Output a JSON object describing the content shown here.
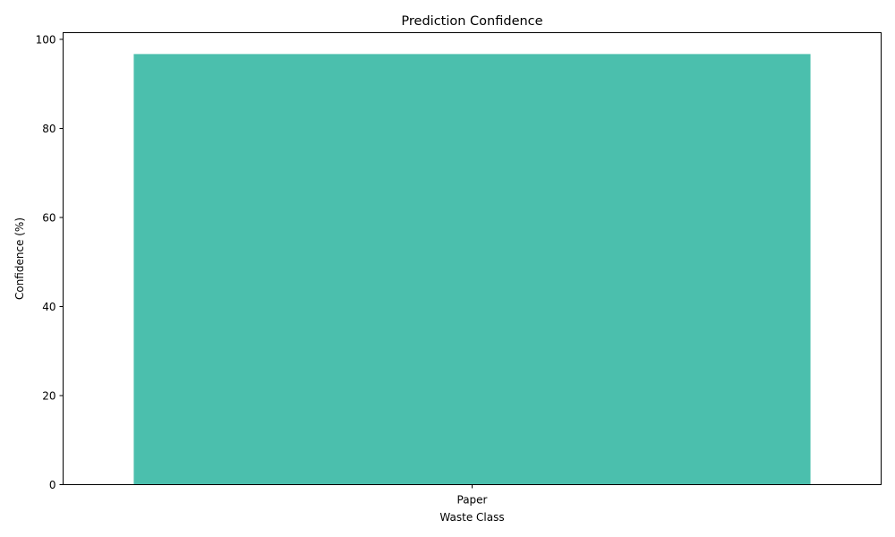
{
  "chart_data": {
    "type": "bar",
    "title": "Prediction Confidence",
    "xlabel": "Waste Class",
    "ylabel": "Confidence (%)",
    "categories": [
      "Paper"
    ],
    "values": [
      96.7
    ],
    "ylim": [
      0,
      101.5
    ],
    "yticks": [
      0,
      20,
      40,
      60,
      80,
      100
    ],
    "grid": false,
    "legend": "none",
    "bar_color": "#4BBFAD"
  }
}
